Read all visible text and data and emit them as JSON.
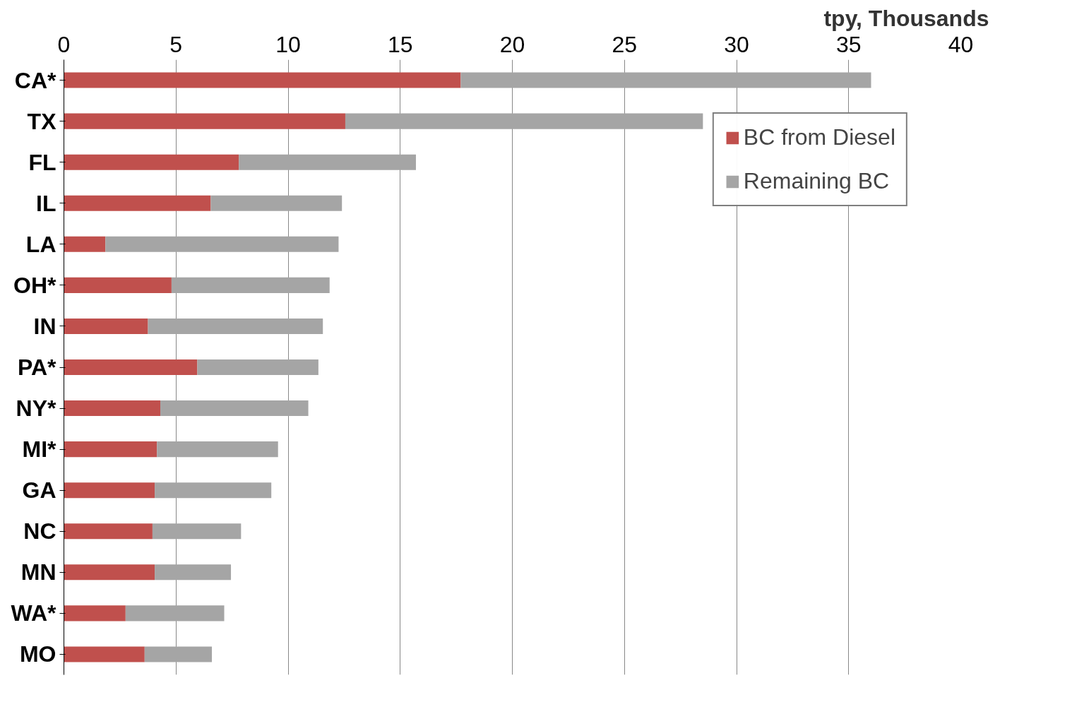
{
  "chart_data": {
    "type": "bar",
    "orientation": "horizontal",
    "stacked": true,
    "xlabel": "tpy, Thousands",
    "categories": [
      "CA*",
      "TX",
      "FL",
      "IL",
      "LA",
      "OH*",
      "IN",
      "PA*",
      "NY*",
      "MI*",
      "GA",
      "NC",
      "MN",
      "WA*",
      "MO"
    ],
    "series": [
      {
        "name": "BC from Diesel",
        "color": "#c0504d",
        "values": [
          17.7,
          12.55,
          7.8,
          6.55,
          1.85,
          4.8,
          3.75,
          5.95,
          4.3,
          4.15,
          4.05,
          3.95,
          4.05,
          2.75,
          3.6
        ]
      },
      {
        "name": "Remaining BC",
        "color": "#a5a5a5",
        "values": [
          18.3,
          15.95,
          7.9,
          5.85,
          10.4,
          7.05,
          7.8,
          5.4,
          6.6,
          5.4,
          5.2,
          3.95,
          3.4,
          4.4,
          3.0
        ]
      }
    ],
    "xlim": [
      0,
      40
    ],
    "xticks": [
      0,
      5,
      10,
      15,
      20,
      25,
      30,
      35,
      40
    ],
    "grid": "x",
    "legend": "top right"
  }
}
